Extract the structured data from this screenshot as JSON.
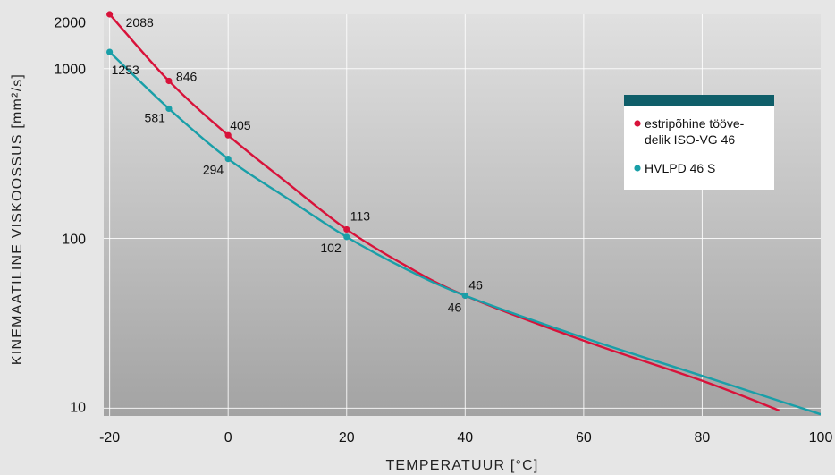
{
  "chart_data": {
    "type": "line",
    "xlabel": "TEMPERATUUR [°C]",
    "ylabel": "KINEMAATILINE VISKOOSSUS [mm²/s]",
    "x_scale": "linear",
    "y_scale": "log",
    "xlim": [
      -21,
      100
    ],
    "ylim": [
      9,
      2088
    ],
    "x_ticks": [
      {
        "value": -20,
        "label": "-20"
      },
      {
        "value": 0,
        "label": "0"
      },
      {
        "value": 20,
        "label": "20"
      },
      {
        "value": 40,
        "label": "40"
      },
      {
        "value": 60,
        "label": "60"
      },
      {
        "value": 80,
        "label": "80"
      },
      {
        "value": 100,
        "label": "100"
      }
    ],
    "y_ticks": [
      {
        "value": 10,
        "label": "10"
      },
      {
        "value": 100,
        "label": "100"
      },
      {
        "value": 1000,
        "label": "1000"
      },
      {
        "value": 2000,
        "label": "2000"
      }
    ],
    "grid": true,
    "legend_position": "right",
    "series": [
      {
        "name": "estripõhine tööve-delik ISO-VG 46",
        "legend_lines": [
          "estripõhine tööve-",
          "delik ISO-VG 46"
        ],
        "color": "#d8123a",
        "points": [
          {
            "x": -20,
            "y": 2088,
            "label": "2088"
          },
          {
            "x": -10,
            "y": 846,
            "label": "846"
          },
          {
            "x": 0,
            "y": 405,
            "label": "405"
          },
          {
            "x": 20,
            "y": 113,
            "label": "113"
          },
          {
            "x": 40,
            "y": 46,
            "label": "46"
          }
        ],
        "curve": [
          {
            "x": -20,
            "y": 2088
          },
          {
            "x": -10,
            "y": 846
          },
          {
            "x": 0,
            "y": 405
          },
          {
            "x": 10,
            "y": 212
          },
          {
            "x": 20,
            "y": 113
          },
          {
            "x": 30,
            "y": 69
          },
          {
            "x": 40,
            "y": 46
          },
          {
            "x": 60,
            "y": 25
          },
          {
            "x": 80,
            "y": 14.5
          },
          {
            "x": 93,
            "y": 9.7
          }
        ]
      },
      {
        "name": "HVLPD 46 S",
        "legend_lines": [
          "HVLPD 46 S"
        ],
        "color": "#199fa8",
        "points": [
          {
            "x": -20,
            "y": 1253,
            "label": "1253"
          },
          {
            "x": -10,
            "y": 581,
            "label": "581"
          },
          {
            "x": 0,
            "y": 294,
            "label": "294"
          },
          {
            "x": 20,
            "y": 102,
            "label": "102"
          },
          {
            "x": 40,
            "y": 46,
            "label": "46"
          }
        ],
        "curve": [
          {
            "x": -20,
            "y": 1253
          },
          {
            "x": -10,
            "y": 581
          },
          {
            "x": 0,
            "y": 294
          },
          {
            "x": 10,
            "y": 172
          },
          {
            "x": 20,
            "y": 102
          },
          {
            "x": 30,
            "y": 66
          },
          {
            "x": 40,
            "y": 46
          },
          {
            "x": 60,
            "y": 26
          },
          {
            "x": 80,
            "y": 15.5
          },
          {
            "x": 100,
            "y": 9.2
          }
        ]
      }
    ]
  }
}
